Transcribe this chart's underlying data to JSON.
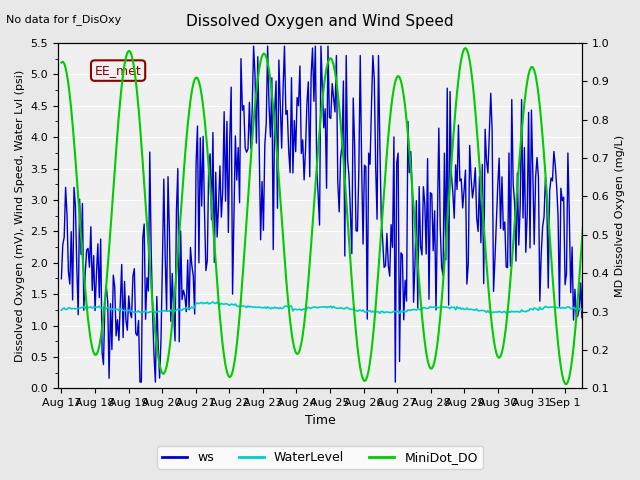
{
  "title": "Dissolved Oxygen and Wind Speed",
  "top_left_text": "No data for f_DisOxy",
  "annotation_text": "EE_met",
  "xlabel": "Time",
  "ylabel_left": "Dissolved Oxygen (mV), Wind Speed, Water Lvl (psi)",
  "ylabel_right": "MD Dissolved Oxygen (mg/L)",
  "ylim_left": [
    0.0,
    5.5
  ],
  "ylim_right": [
    0.1,
    1.0
  ],
  "x_tick_labels": [
    "Aug 17",
    "Aug 18",
    "Aug 19",
    "Aug 20",
    "Aug 21",
    "Aug 22",
    "Aug 23",
    "Aug 24",
    "Aug 25",
    "Aug 26",
    "Aug 27",
    "Aug 28",
    "Aug 29",
    "Aug 30",
    "Aug 31",
    "Sep 1"
  ],
  "ws_color": "#0000cc",
  "water_level_color": "#00cccc",
  "minidot_color": "#00cc00",
  "background_color": "#e8e8e8",
  "plot_bg_color": "#f0f0f0",
  "legend_labels": [
    "ws",
    "WaterLevel",
    "MiniDot_DO"
  ],
  "ws_lw": 1.0,
  "water_level_lw": 1.2,
  "minidot_lw": 1.5
}
